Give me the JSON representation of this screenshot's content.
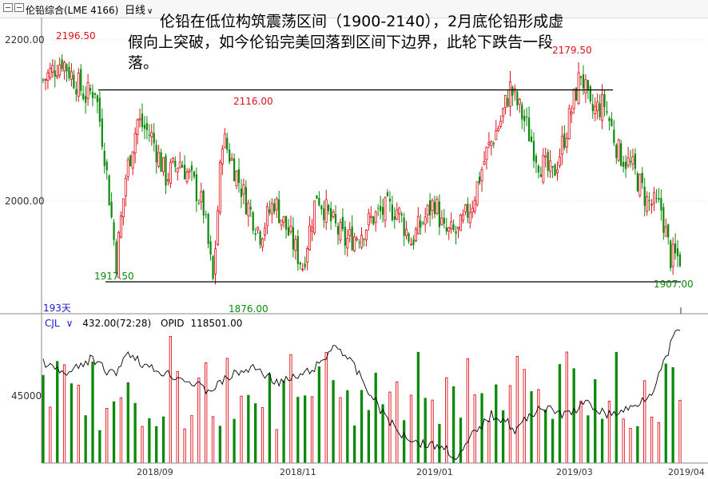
{
  "header": {
    "instrument": "伦铅综合(LME 4166)",
    "period": "日线"
  },
  "annotation": "伦铅在低位构筑震荡区间（1900-2140），2月底伦铅形成虚假向上突破，如今伦铅完美回落到区间下边界，此轮下跌告一段落。",
  "chart_data": {
    "type": "candlestick",
    "price_axis": {
      "ticks": [
        2200,
        2000
      ],
      "tick_labels": [
        "2200.00",
        "2000.00"
      ]
    },
    "x_tick_labels": [
      "2018/09",
      "2018/11",
      "2019/01",
      "2019/03",
      "2019/04"
    ],
    "peak_labels": [
      {
        "label": "2196.50",
        "value": 2196.5,
        "color": "red"
      },
      {
        "label": "2116.00",
        "value": 2116.0,
        "color": "red"
      },
      {
        "label": "2179.50",
        "value": 2179.5,
        "color": "red"
      },
      {
        "label": "1917.50",
        "value": 1917.5,
        "color": "green"
      },
      {
        "label": "1876.00",
        "value": 1876.0,
        "color": "green"
      },
      {
        "label": "1907.00",
        "value": 1907.0,
        "color": "green"
      }
    ],
    "range_lines": {
      "upper": 2138,
      "lower": 1900
    },
    "days_label": "193天",
    "volume": {
      "indicator": "CJL",
      "value": "432.00(72:28)",
      "oi_label": "OPID",
      "oi_value": "118501.00",
      "axis_label": "45000"
    },
    "colors": {
      "up": "#e0101a",
      "down": "#0a8a0a",
      "line": "#000000",
      "grid": "#c8c8c8"
    }
  }
}
